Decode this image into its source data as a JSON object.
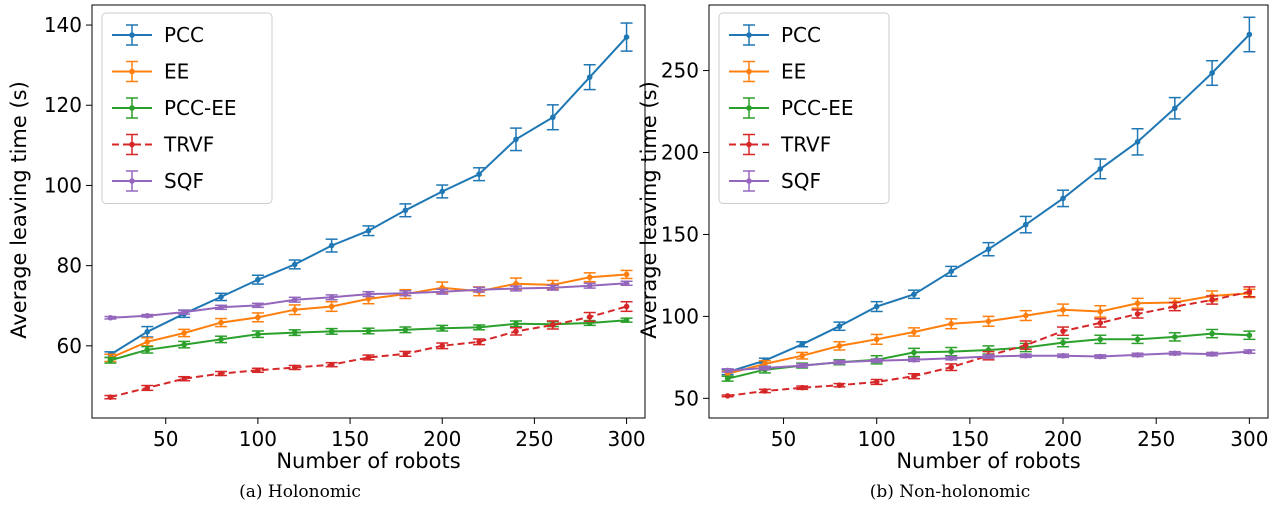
{
  "captions": [
    "(a) Holonomic",
    "(b) Non-holonomic"
  ],
  "colors": {
    "PCC": "#1f77b4",
    "EE": "#ff7f0e",
    "PCC-EE": "#2ca02c",
    "TRVF": "#d62728",
    "SQF": "#9467bd"
  },
  "chart_data": [
    {
      "type": "line",
      "caption": "(a) Holonomic",
      "xlabel": "Number of robots",
      "ylabel": "Average leaving time (s)",
      "xlim": [
        10,
        310
      ],
      "ylim": [
        42,
        145
      ],
      "xticks": [
        50,
        100,
        150,
        200,
        250,
        300
      ],
      "yticks": [
        60,
        80,
        100,
        120,
        140
      ],
      "legend": "top-left",
      "x": [
        20,
        40,
        60,
        80,
        100,
        120,
        140,
        160,
        180,
        200,
        220,
        240,
        260,
        280,
        300
      ],
      "series": [
        {
          "name": "PCC",
          "style": "solid",
          "values": [
            57.8,
            63.5,
            68.0,
            72.2,
            76.5,
            80.3,
            85.0,
            88.7,
            93.8,
            98.5,
            102.8,
            111.5,
            117.0,
            127.0,
            137.0
          ],
          "err": [
            0.7,
            1.3,
            0.9,
            0.9,
            1.1,
            1.1,
            1.6,
            1.2,
            1.6,
            1.6,
            1.6,
            2.8,
            3.1,
            3.1,
            3.5
          ]
        },
        {
          "name": "EE",
          "style": "solid",
          "values": [
            57.0,
            61.0,
            63.2,
            65.8,
            67.1,
            69.0,
            69.8,
            71.7,
            72.9,
            74.5,
            73.6,
            75.5,
            75.2,
            77.1,
            77.8
          ],
          "err": [
            0.9,
            1.0,
            0.9,
            1.0,
            1.1,
            1.2,
            1.2,
            1.2,
            1.1,
            1.4,
            1.1,
            1.4,
            1.1,
            1.1,
            1.0
          ]
        },
        {
          "name": "PCC-EE",
          "style": "solid",
          "values": [
            56.4,
            59.0,
            60.3,
            61.6,
            62.9,
            63.3,
            63.6,
            63.7,
            64.0,
            64.4,
            64.6,
            65.5,
            65.4,
            65.7,
            66.4
          ],
          "err": [
            0.7,
            0.8,
            0.8,
            0.8,
            0.8,
            0.7,
            0.7,
            0.7,
            0.7,
            0.7,
            0.6,
            0.7,
            0.6,
            0.6,
            0.5
          ]
        },
        {
          "name": "TRVF",
          "style": "dashed",
          "values": [
            47.2,
            49.5,
            51.8,
            53.1,
            53.9,
            54.6,
            55.3,
            57.1,
            58.0,
            60.0,
            61.0,
            63.6,
            65.2,
            67.2,
            69.8
          ],
          "err": [
            0.4,
            0.6,
            0.5,
            0.5,
            0.5,
            0.5,
            0.5,
            0.6,
            0.6,
            0.7,
            0.7,
            0.9,
            1.0,
            1.1,
            1.2
          ]
        },
        {
          "name": "SQF",
          "style": "solid",
          "values": [
            67.0,
            67.5,
            68.4,
            69.6,
            70.1,
            71.5,
            72.1,
            72.9,
            73.1,
            73.5,
            74.0,
            74.3,
            74.5,
            75.0,
            75.6
          ],
          "err": [
            0.3,
            0.3,
            0.5,
            0.5,
            0.5,
            0.6,
            0.6,
            0.6,
            0.6,
            0.6,
            0.6,
            0.6,
            0.6,
            0.6,
            0.5
          ]
        }
      ]
    },
    {
      "type": "line",
      "caption": "(b) Non-holonomic",
      "xlabel": "Number of robots",
      "ylabel": "Average leaving time (s)",
      "xlim": [
        10,
        310
      ],
      "ylim": [
        38,
        290
      ],
      "xticks": [
        50,
        100,
        150,
        200,
        250,
        300
      ],
      "yticks": [
        50,
        100,
        150,
        200,
        250
      ],
      "legend": "top-left",
      "x": [
        20,
        40,
        60,
        80,
        100,
        120,
        140,
        160,
        180,
        200,
        220,
        240,
        260,
        280,
        300
      ],
      "series": [
        {
          "name": "PCC",
          "style": "solid",
          "values": [
            66.0,
            73.0,
            83.0,
            94.0,
            106.0,
            113.5,
            127.5,
            141.0,
            156.0,
            172.0,
            190.0,
            206.5,
            227.0,
            248.5,
            272.0
          ],
          "err": [
            1.5,
            1.5,
            1.5,
            2.5,
            3.0,
            2.5,
            3.0,
            4.0,
            5.0,
            5.0,
            6.0,
            8.0,
            6.5,
            7.5,
            10.5
          ]
        },
        {
          "name": "EE",
          "style": "solid",
          "values": [
            65.0,
            71.0,
            76.0,
            82.0,
            86.0,
            90.5,
            95.5,
            97.0,
            100.5,
            104.0,
            103.0,
            108.0,
            108.5,
            112.5,
            114.0
          ],
          "err": [
            1.5,
            2.0,
            2.0,
            2.5,
            3.0,
            2.5,
            3.0,
            3.0,
            3.0,
            3.5,
            3.5,
            3.0,
            2.5,
            3.0,
            2.5
          ]
        },
        {
          "name": "PCC-EE",
          "style": "solid",
          "values": [
            62.0,
            67.5,
            70.0,
            72.0,
            73.5,
            78.0,
            78.5,
            79.5,
            81.0,
            84.0,
            86.0,
            86.0,
            87.5,
            89.5,
            88.5
          ],
          "err": [
            1.5,
            2.0,
            1.5,
            1.5,
            2.5,
            2.5,
            2.5,
            2.5,
            2.5,
            2.5,
            2.5,
            2.5,
            2.5,
            2.5,
            2.5
          ]
        },
        {
          "name": "TRVF",
          "style": "dashed",
          "values": [
            51.5,
            54.5,
            56.5,
            58.0,
            60.0,
            63.5,
            69.0,
            76.0,
            82.5,
            91.0,
            96.0,
            101.5,
            106.0,
            110.0,
            115.0
          ],
          "err": [
            0.5,
            1.0,
            1.0,
            1.0,
            1.5,
            1.5,
            2.0,
            2.5,
            2.5,
            2.5,
            2.5,
            2.5,
            2.5,
            2.5,
            3.0
          ]
        },
        {
          "name": "SQF",
          "style": "solid",
          "values": [
            67.0,
            68.5,
            70.0,
            72.0,
            73.0,
            73.5,
            74.5,
            75.5,
            76.0,
            76.0,
            75.5,
            76.5,
            77.5,
            77.0,
            78.5
          ],
          "err": [
            1.0,
            1.0,
            1.0,
            1.0,
            1.0,
            1.0,
            1.0,
            1.0,
            1.0,
            1.0,
            1.0,
            1.0,
            1.0,
            1.0,
            1.0
          ]
        }
      ]
    }
  ]
}
